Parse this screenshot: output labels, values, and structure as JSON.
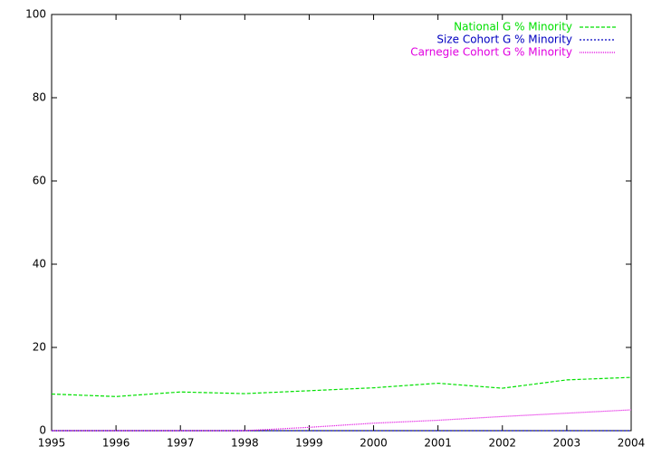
{
  "chart_data": {
    "type": "line",
    "x": [
      1995,
      1996,
      1997,
      1998,
      1999,
      2000,
      2001,
      2002,
      2003,
      2004
    ],
    "series": [
      {
        "name": "National G % Minority",
        "color": "#00e000",
        "dash": "4,2",
        "values": [
          8.8,
          8.2,
          9.3,
          8.9,
          9.6,
          10.3,
          11.4,
          10.2,
          12.2,
          12.8
        ]
      },
      {
        "name": "Size Cohort G % Minority",
        "color": "#0000c0",
        "dash": "2,2",
        "values": [
          0,
          0,
          0,
          0,
          0,
          0,
          0,
          0,
          0,
          0
        ]
      },
      {
        "name": "Carnegie Cohort G % Minority",
        "color": "#e000e0",
        "dash": "1,1",
        "values": [
          0,
          0,
          0,
          0,
          0.8,
          1.8,
          2.5,
          3.4,
          4.2,
          5.0
        ]
      }
    ],
    "xlim": [
      1995,
      2004
    ],
    "xticks": [
      1995,
      1996,
      1997,
      1998,
      1999,
      2000,
      2001,
      2002,
      2003,
      2004
    ],
    "ylim": [
      0,
      100
    ],
    "yticks": [
      0,
      20,
      40,
      60,
      80,
      100
    ],
    "legend": "top right"
  }
}
